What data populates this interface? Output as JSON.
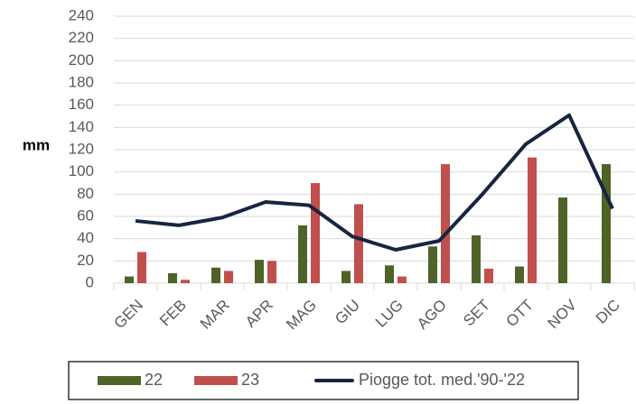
{
  "chart_data": {
    "type": "bar_line",
    "ylabel": "mm",
    "categories": [
      "GEN",
      "FEB",
      "MAR",
      "APR",
      "MAG",
      "GIU",
      "LUG",
      "AGO",
      "SET",
      "OTT",
      "NOV",
      "DIC"
    ],
    "series": [
      {
        "name": "22",
        "type": "bar",
        "color": "#4f6228",
        "values": [
          6,
          9,
          14,
          21,
          52,
          11,
          16,
          33,
          43,
          15,
          77,
          107
        ]
      },
      {
        "name": "23",
        "type": "bar",
        "color": "#c0504d",
        "values": [
          28,
          3,
          11,
          20,
          90,
          71,
          6,
          107,
          13,
          113,
          null,
          null
        ]
      },
      {
        "name": "Piogge tot. med.'90-'22",
        "type": "line",
        "color": "#17263f",
        "values": [
          56,
          52,
          59,
          73,
          70,
          42,
          30,
          38,
          80,
          125,
          151,
          67
        ]
      }
    ],
    "ylim": [
      0,
      240
    ],
    "yticks": [
      0,
      20,
      40,
      60,
      80,
      100,
      120,
      140,
      160,
      180,
      200,
      220,
      240
    ],
    "grid": true,
    "legend": "bottom"
  }
}
